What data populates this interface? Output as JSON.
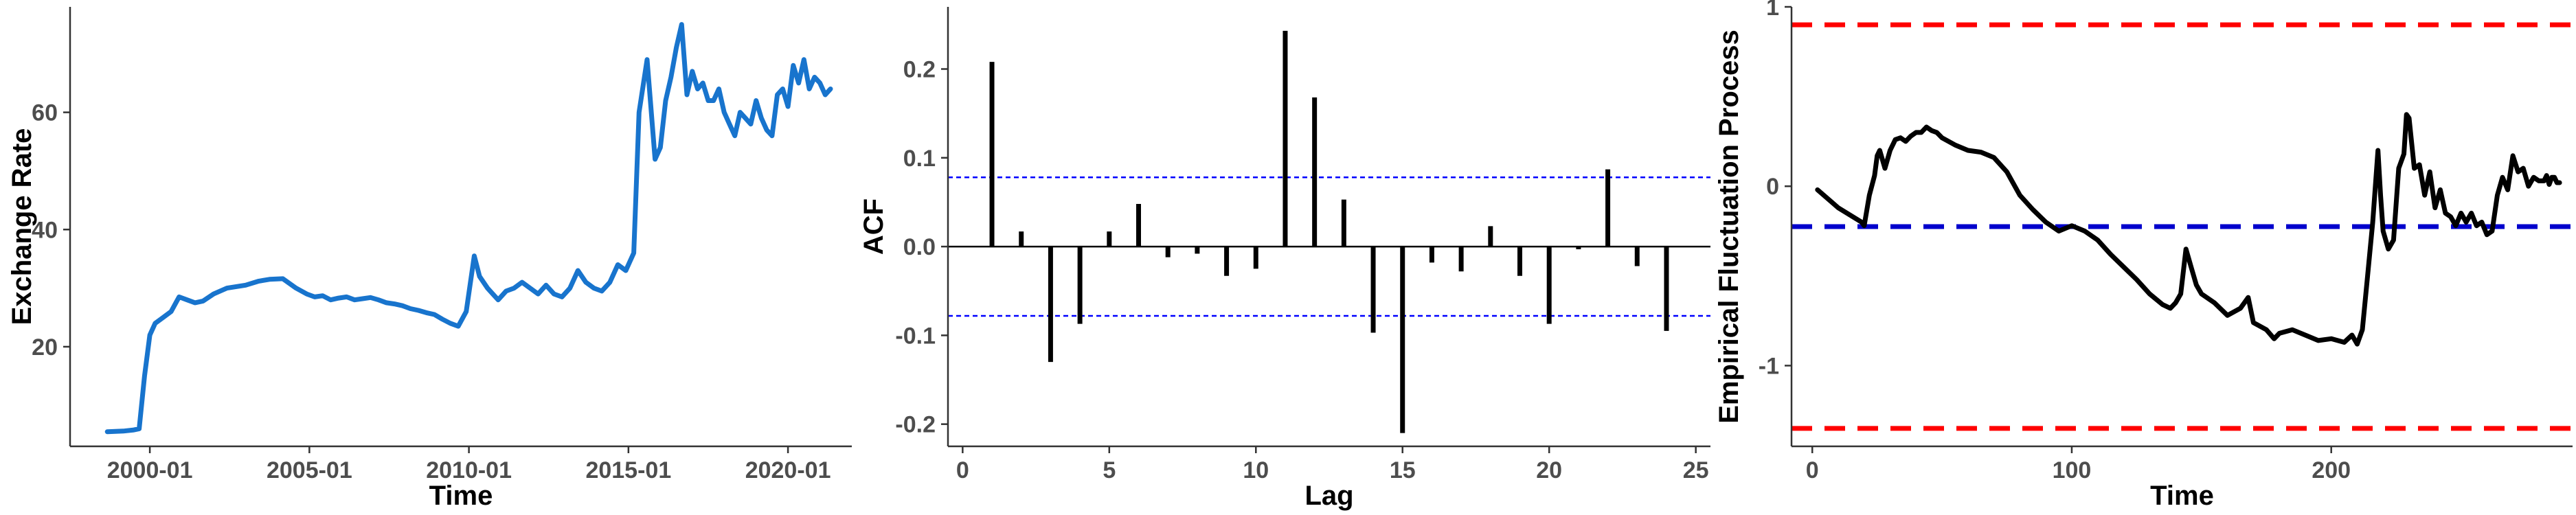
{
  "chart_data": [
    {
      "type": "line",
      "xlabel": "Time",
      "ylabel": "Exchange Rate",
      "x_type": "date",
      "xlim": [
        "1997-07",
        "2022-01"
      ],
      "ylim": [
        3,
        78
      ],
      "xticks": [
        "2000-01",
        "2005-01",
        "2010-01",
        "2015-01",
        "2020-01"
      ],
      "yticks": [
        20,
        40,
        60
      ],
      "grid": false,
      "colors": {
        "line": "#1874CD"
      },
      "series": [
        {
          "x": [
            "1998-09",
            "1999-03",
            "1999-07",
            "1999-09",
            "1999-11",
            "2000-01",
            "2000-03",
            "2000-06",
            "2000-09",
            "2000-12",
            "2001-03",
            "2001-06",
            "2001-09",
            "2002-01",
            "2002-06",
            "2003-01",
            "2003-06",
            "2003-10",
            "2004-03",
            "2004-08",
            "2004-12",
            "2005-03",
            "2005-06",
            "2005-09",
            "2005-12",
            "2006-03",
            "2006-06",
            "2006-09",
            "2006-12",
            "2007-03",
            "2007-06",
            "2007-09",
            "2007-12",
            "2008-03",
            "2008-06",
            "2008-09",
            "2008-12",
            "2009-03",
            "2009-06",
            "2009-09",
            "2009-12",
            "2010-03",
            "2010-05",
            "2010-08",
            "2010-10",
            "2010-12",
            "2011-03",
            "2011-06",
            "2011-09",
            "2011-12",
            "2012-03",
            "2012-06",
            "2012-09",
            "2012-12",
            "2013-03",
            "2013-06",
            "2013-09",
            "2013-12",
            "2014-03",
            "2014-06",
            "2014-09",
            "2014-12",
            "2015-03",
            "2015-05",
            "2015-08",
            "2015-11",
            "2016-01",
            "2016-03",
            "2016-05",
            "2016-07",
            "2016-09",
            "2016-11",
            "2017-01",
            "2017-03",
            "2017-05",
            "2017-07",
            "2017-09",
            "2017-11",
            "2018-01",
            "2018-03",
            "2018-05",
            "2018-07",
            "2018-09",
            "2018-11",
            "2019-01",
            "2019-03",
            "2019-05",
            "2019-07",
            "2019-09",
            "2019-11",
            "2020-01",
            "2020-03",
            "2020-05",
            "2020-07",
            "2020-09",
            "2020-11",
            "2021-01",
            "2021-03",
            "2021-05"
          ],
          "y": [
            5.5,
            5.6,
            5.8,
            6,
            15,
            22,
            24,
            25,
            26,
            28.5,
            28,
            27.5,
            27.8,
            29,
            30,
            30.5,
            31.2,
            31.5,
            31.6,
            30,
            29,
            28.5,
            28.7,
            28,
            28.3,
            28.5,
            28,
            28.2,
            28.4,
            28,
            27.5,
            27.3,
            27,
            26.5,
            26.2,
            25.8,
            25.5,
            24.7,
            24,
            23.5,
            26,
            35.5,
            32,
            30,
            29,
            28,
            29.5,
            30,
            31,
            30,
            29,
            30.5,
            29,
            28.5,
            30,
            33,
            31,
            30,
            29.5,
            31,
            34,
            33,
            36,
            60,
            69,
            52,
            54,
            62,
            66,
            71,
            75,
            63,
            67,
            64,
            65,
            62,
            62,
            64,
            60,
            58,
            56,
            60,
            59,
            58,
            62,
            59,
            57,
            56,
            63,
            64,
            61,
            68,
            65,
            69,
            64,
            66,
            65,
            63,
            64
          ]
        }
      ]
    },
    {
      "type": "bar",
      "xlabel": "Lag",
      "ylabel": "ACF",
      "xlim": [
        -0.5,
        25.5
      ],
      "ylim": [
        -0.225,
        0.27
      ],
      "xticks": [
        0,
        5,
        10,
        15,
        20,
        25
      ],
      "yticks": [
        -0.2,
        -0.1,
        0.0,
        0.1,
        0.2
      ],
      "yticklabels": [
        "-0.2",
        "-0.1",
        "0.0",
        "0.1",
        "0.2"
      ],
      "confidence_bounds": [
        0.078,
        -0.078
      ],
      "grid": false,
      "colors": {
        "bars": "#000000",
        "bounds": "#0000FF"
      },
      "lags": [
        1,
        2,
        3,
        4,
        5,
        6,
        7,
        8,
        9,
        10,
        11,
        12,
        13,
        14,
        15,
        16,
        17,
        18,
        19,
        20,
        21,
        22,
        23,
        24
      ],
      "values": [
        0.208,
        0.017,
        -0.13,
        -0.087,
        0.017,
        0.048,
        -0.012,
        -0.008,
        -0.033,
        -0.025,
        0.243,
        0.168,
        0.053,
        -0.097,
        -0.21,
        -0.018,
        -0.028,
        0.023,
        -0.033,
        -0.087,
        -0.003,
        0.087,
        -0.022,
        -0.095
      ]
    },
    {
      "type": "line",
      "xlabel": "Time",
      "ylabel": "Empirical Fluctuation Process",
      "xlim": [
        -8,
        293
      ],
      "ylim": [
        -1.45,
        1.0
      ],
      "xticks": [
        0,
        100,
        200
      ],
      "yticks": [
        -1,
        0,
        1
      ],
      "reference_lines": [
        {
          "y": 0.9,
          "color": "#FF0000",
          "style": "dashed"
        },
        {
          "y": -1.35,
          "color": "#FF0000",
          "style": "dashed"
        },
        {
          "y": -0.225,
          "color": "#0000CC",
          "style": "dashed"
        }
      ],
      "grid": false,
      "colors": {
        "line": "#000000"
      },
      "series": [
        {
          "x": [
            2,
            10,
            19,
            20,
            22,
            24,
            25,
            26,
            28,
            30,
            32,
            34,
            36,
            38,
            40,
            42,
            44,
            46,
            48,
            50,
            55,
            60,
            65,
            70,
            75,
            80,
            85,
            90,
            95,
            100,
            105,
            110,
            115,
            120,
            125,
            130,
            135,
            138,
            140,
            142,
            144,
            146,
            148,
            150,
            155,
            160,
            165,
            168,
            170,
            175,
            178,
            180,
            185,
            190,
            195,
            200,
            205,
            208,
            210,
            212,
            214,
            216,
            218,
            219,
            220,
            222,
            224,
            226,
            228,
            229,
            230,
            232,
            234,
            236,
            238,
            240,
            242,
            244,
            246,
            248,
            250,
            252,
            254,
            256,
            258,
            260,
            262,
            264,
            266,
            268,
            270,
            272,
            274,
            276,
            278,
            280,
            282,
            283,
            284,
            285,
            286,
            287,
            288
          ],
          "y": [
            -0.02,
            -0.12,
            -0.2,
            -0.22,
            -0.05,
            0.06,
            0.17,
            0.2,
            0.1,
            0.2,
            0.26,
            0.27,
            0.25,
            0.28,
            0.3,
            0.3,
            0.33,
            0.31,
            0.3,
            0.27,
            0.23,
            0.2,
            0.19,
            0.16,
            0.08,
            -0.05,
            -0.13,
            -0.2,
            -0.25,
            -0.22,
            -0.25,
            -0.3,
            -0.38,
            -0.45,
            -0.52,
            -0.6,
            -0.66,
            -0.68,
            -0.65,
            -0.6,
            -0.35,
            -0.45,
            -0.55,
            -0.6,
            -0.65,
            -0.72,
            -0.68,
            -0.62,
            -0.76,
            -0.8,
            -0.85,
            -0.82,
            -0.8,
            -0.83,
            -0.86,
            -0.85,
            -0.87,
            -0.83,
            -0.88,
            -0.8,
            -0.5,
            -0.2,
            0.2,
            -0.05,
            -0.25,
            -0.35,
            -0.3,
            0.1,
            0.18,
            0.4,
            0.38,
            0.1,
            0.12,
            -0.05,
            0.08,
            -0.12,
            -0.02,
            -0.15,
            -0.17,
            -0.22,
            -0.15,
            -0.2,
            -0.15,
            -0.22,
            -0.2,
            -0.27,
            -0.25,
            -0.05,
            0.05,
            -0.02,
            0.17,
            0.08,
            0.1,
            0.0,
            0.05,
            0.03,
            0.03,
            0.06,
            0.01,
            0.05,
            0.05,
            0.02,
            0.02
          ]
        }
      ]
    }
  ]
}
